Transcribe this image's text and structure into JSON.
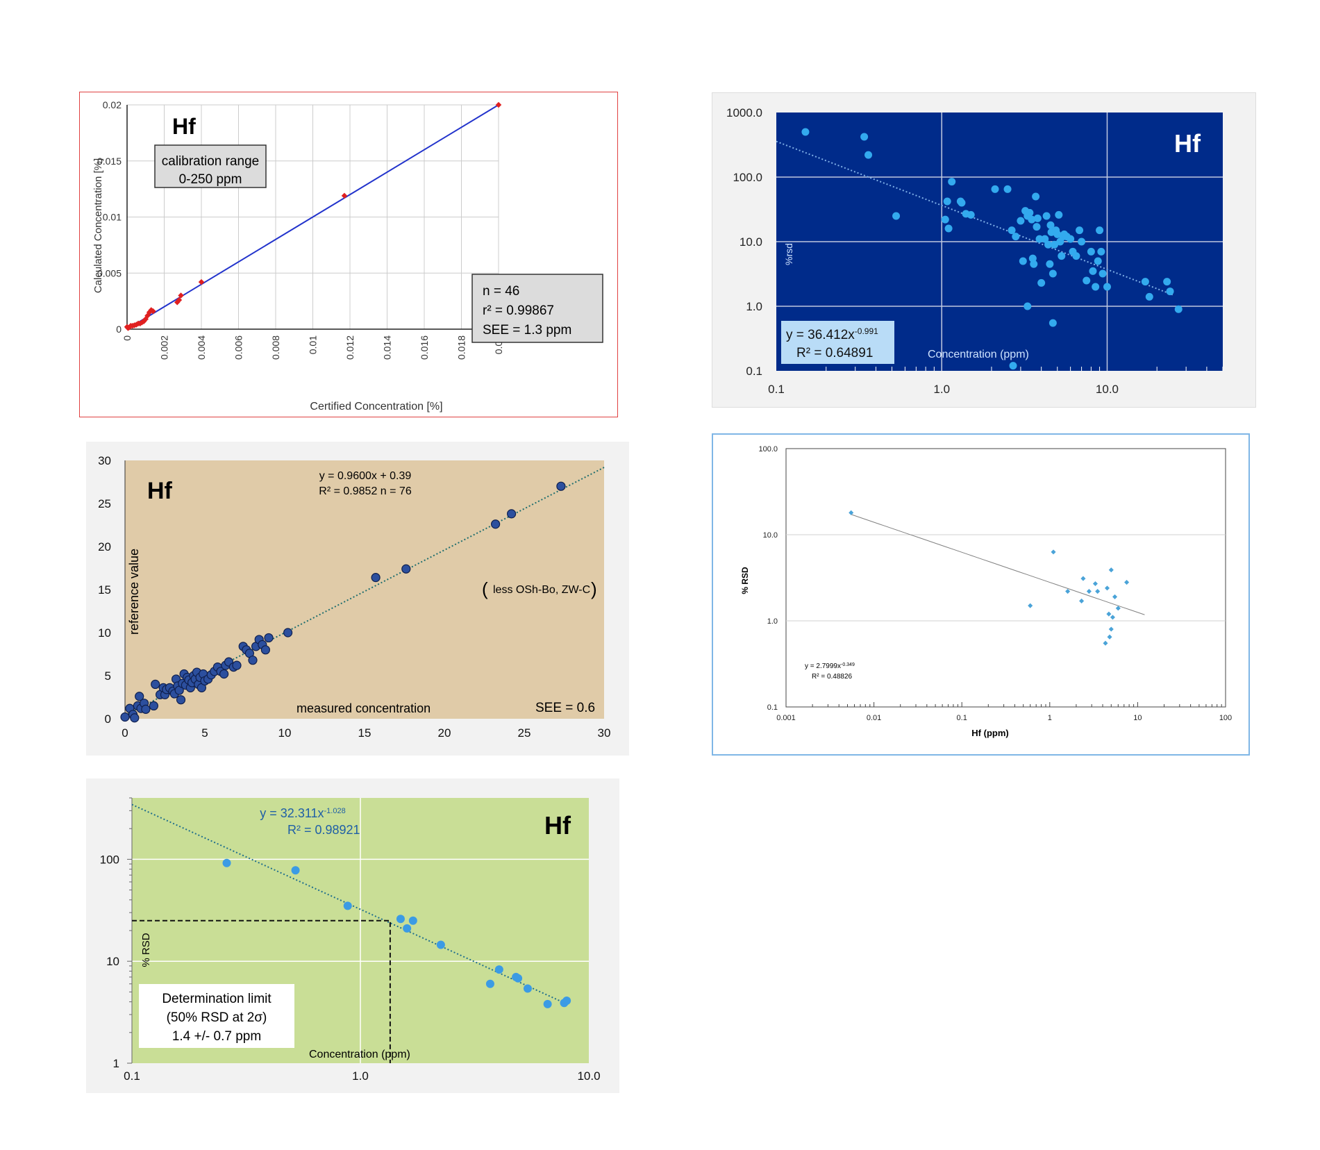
{
  "chart_data": [
    {
      "type": "scatter",
      "element": "Hf",
      "xlabel": "Certified Concentration [%]",
      "ylabel": "Calculated Concentration [%]",
      "xlim": [
        0,
        0.02
      ],
      "ylim": [
        0,
        0.02
      ],
      "x_ticks": [
        "0",
        "0.002",
        "0.004",
        "0.006",
        "0.008",
        "0.01",
        "0.012",
        "0.014",
        "0.016",
        "0.018",
        "0.02"
      ],
      "y_ticks": [
        "0",
        "0.005",
        "0.01",
        "0.015",
        "0.02"
      ],
      "grid": true,
      "box_title": "calibration range",
      "box_range": "0-250 ppm",
      "stats": [
        "n = 46",
        "r² = 0.99867",
        "SEE = 1.3 ppm"
      ],
      "fit_line": [
        [
          0,
          0
        ],
        [
          0.02,
          0.02
        ]
      ],
      "points": [
        [
          0,
          0.0002
        ],
        [
          5e-05,
          0.0001
        ],
        [
          0.0001,
          0.00015
        ],
        [
          0.00015,
          0.0002
        ],
        [
          0.0002,
          0.0003
        ],
        [
          0.0003,
          0.0003
        ],
        [
          0.0004,
          0.00035
        ],
        [
          0.0005,
          0.0004
        ],
        [
          0.0006,
          0.0005
        ],
        [
          0.0007,
          0.0005
        ],
        [
          0.0008,
          0.0006
        ],
        [
          0.0009,
          0.0007
        ],
        [
          0.001,
          0.0009
        ],
        [
          0.0011,
          0.0012
        ],
        [
          0.0012,
          0.0015
        ],
        [
          0.0013,
          0.0017
        ],
        [
          0.0014,
          0.0016
        ],
        [
          0.0027,
          0.0024
        ],
        [
          0.0028,
          0.0026
        ],
        [
          0.0029,
          0.003
        ],
        [
          0.004,
          0.0042
        ],
        [
          0.0117,
          0.0119
        ],
        [
          0.02,
          0.02
        ]
      ],
      "colors": {
        "points": "#e02020",
        "line": "#2233cc",
        "frame": "#e04040"
      }
    },
    {
      "type": "scatter",
      "element": "Hf",
      "ylabel": "%rsd",
      "xlabel": "Concentration (ppm)",
      "x_scale": "log",
      "y_scale": "log",
      "xlim": [
        0.1,
        50
      ],
      "ylim": [
        0.1,
        1000
      ],
      "x_ticks": [
        "0.1",
        "1.0",
        "10.0"
      ],
      "y_ticks": [
        "0.1",
        "1.0",
        "10.0",
        "100.0",
        "1000.0"
      ],
      "equation": "y = 36.412x",
      "equation_exp": "-0.991",
      "r2": "R² = 0.64891",
      "fit": {
        "a": 36.412,
        "b": -0.991
      },
      "fit_range": [
        0.1,
        25
      ],
      "points": [
        [
          0.15,
          500
        ],
        [
          0.34,
          420
        ],
        [
          0.36,
          220
        ],
        [
          0.53,
          25
        ],
        [
          1.05,
          22
        ],
        [
          1.08,
          42
        ],
        [
          1.1,
          16
        ],
        [
          1.15,
          85
        ],
        [
          1.3,
          42
        ],
        [
          1.32,
          40
        ],
        [
          1.4,
          27
        ],
        [
          1.5,
          26
        ],
        [
          2.1,
          65
        ],
        [
          2.5,
          65
        ],
        [
          2.65,
          15
        ],
        [
          2.8,
          12
        ],
        [
          3.0,
          21
        ],
        [
          3.1,
          5
        ],
        [
          3.2,
          30
        ],
        [
          3.3,
          25
        ],
        [
          3.4,
          28
        ],
        [
          3.5,
          22
        ],
        [
          3.55,
          5.5
        ],
        [
          3.6,
          4.5
        ],
        [
          3.7,
          50
        ],
        [
          3.75,
          17
        ],
        [
          3.8,
          23
        ],
        [
          3.9,
          11
        ],
        [
          4.0,
          2.3
        ],
        [
          4.2,
          11
        ],
        [
          4.3,
          25
        ],
        [
          4.4,
          9
        ],
        [
          4.5,
          4.5
        ],
        [
          4.55,
          18
        ],
        [
          4.6,
          14
        ],
        [
          4.7,
          3.2
        ],
        [
          4.8,
          9
        ],
        [
          4.9,
          15
        ],
        [
          5.0,
          13
        ],
        [
          5.1,
          26
        ],
        [
          5.2,
          10
        ],
        [
          5.3,
          6
        ],
        [
          5.4,
          12
        ],
        [
          5.5,
          13
        ],
        [
          5.7,
          12
        ],
        [
          6.0,
          11
        ],
        [
          6.2,
          7
        ],
        [
          6.5,
          6
        ],
        [
          6.8,
          15
        ],
        [
          7.0,
          10
        ],
        [
          7.5,
          2.5
        ],
        [
          8.0,
          7
        ],
        [
          8.2,
          3.5
        ],
        [
          8.5,
          2
        ],
        [
          8.8,
          5
        ],
        [
          9.0,
          15
        ],
        [
          9.2,
          7
        ],
        [
          9.4,
          3.2
        ],
        [
          10.0,
          2
        ],
        [
          17.0,
          2.4
        ],
        [
          18.0,
          1.4
        ],
        [
          23.0,
          2.4
        ],
        [
          24.0,
          1.7
        ],
        [
          27.0,
          0.9
        ],
        [
          3.3,
          1.0
        ],
        [
          4.7,
          0.55
        ],
        [
          2.7,
          0.12
        ]
      ],
      "colors": {
        "background": "#002b8a",
        "points": "#33aaee",
        "panel": "#f2f2f2",
        "label_box": "#b9dcf7"
      }
    },
    {
      "type": "scatter",
      "element": "Hf",
      "xlabel": "measured concentration",
      "ylabel": "reference value",
      "xlim": [
        0,
        30
      ],
      "ylim": [
        0,
        30
      ],
      "x_ticks": [
        "0",
        "5",
        "10",
        "15",
        "20",
        "25",
        "30"
      ],
      "y_ticks": [
        "0",
        "5",
        "10",
        "15",
        "20",
        "25",
        "30"
      ],
      "equation": "y = 0.9600x + 0.39",
      "r2_n": "R² = 0.9852   n = 76",
      "fit": {
        "slope": 0.96,
        "intercept": 0.39
      },
      "note": "less OSh-Bo, ZW-C",
      "see": "SEE = 0.6",
      "points": [
        [
          0,
          0.2
        ],
        [
          0.3,
          1.2
        ],
        [
          0.5,
          0.5
        ],
        [
          0.6,
          0.1
        ],
        [
          0.8,
          1.5
        ],
        [
          0.9,
          2.6
        ],
        [
          1.0,
          1.2
        ],
        [
          1.2,
          1.8
        ],
        [
          1.3,
          1.1
        ],
        [
          1.8,
          1.5
        ],
        [
          1.9,
          4.0
        ],
        [
          2.2,
          2.8
        ],
        [
          2.4,
          3.6
        ],
        [
          2.5,
          2.8
        ],
        [
          2.6,
          3.4
        ],
        [
          2.8,
          3.6
        ],
        [
          3.0,
          3.2
        ],
        [
          3.1,
          2.9
        ],
        [
          3.2,
          4.6
        ],
        [
          3.3,
          3.8
        ],
        [
          3.4,
          3.3
        ],
        [
          3.5,
          2.2
        ],
        [
          3.6,
          4.1
        ],
        [
          3.7,
          5.2
        ],
        [
          3.8,
          3.9
        ],
        [
          3.9,
          4.8
        ],
        [
          4.0,
          4.5
        ],
        [
          4.1,
          3.6
        ],
        [
          4.2,
          4.2
        ],
        [
          4.3,
          5.0
        ],
        [
          4.4,
          4.6
        ],
        [
          4.5,
          5.4
        ],
        [
          4.6,
          4.0
        ],
        [
          4.7,
          4.8
        ],
        [
          4.8,
          3.6
        ],
        [
          4.9,
          5.2
        ],
        [
          5.0,
          4.4
        ],
        [
          5.2,
          4.6
        ],
        [
          5.4,
          5.1
        ],
        [
          5.6,
          5.5
        ],
        [
          5.8,
          6.0
        ],
        [
          6.0,
          5.5
        ],
        [
          6.2,
          5.2
        ],
        [
          6.3,
          6.2
        ],
        [
          6.5,
          6.6
        ],
        [
          6.8,
          6.0
        ],
        [
          7.0,
          6.2
        ],
        [
          7.4,
          8.4
        ],
        [
          7.6,
          8.0
        ],
        [
          7.8,
          7.6
        ],
        [
          8.0,
          6.8
        ],
        [
          8.2,
          8.4
        ],
        [
          8.4,
          9.2
        ],
        [
          8.6,
          8.6
        ],
        [
          8.8,
          8.0
        ],
        [
          9.0,
          9.4
        ],
        [
          10.2,
          10.0
        ],
        [
          15.7,
          16.4
        ],
        [
          17.6,
          17.4
        ],
        [
          23.2,
          22.6
        ],
        [
          24.2,
          23.8
        ],
        [
          27.3,
          27.0
        ]
      ],
      "colors": {
        "background": "#e0cba8",
        "points": "#1f3d8f",
        "fit": "#1f6e6e",
        "panel": "#f2f2f2"
      }
    },
    {
      "type": "scatter",
      "element": "Hf",
      "xlabel": "Hf (ppm)",
      "ylabel": "% RSD",
      "x_scale": "log",
      "y_scale": "log",
      "xlim": [
        0.001,
        100
      ],
      "ylim": [
        0.1,
        100
      ],
      "x_ticks": [
        "0.001",
        "0.01",
        "0.1",
        "1",
        "10",
        "100"
      ],
      "y_ticks": [
        "0.1",
        "1.0",
        "10.0",
        "100.0"
      ],
      "equation": "y = 2.7999x",
      "equation_exp": "-0.349",
      "r2": "R² = 0.48826",
      "fit": {
        "a": 2.7999,
        "b": -0.349
      },
      "fit_range": [
        0.0055,
        12
      ],
      "points": [
        [
          0.0055,
          18
        ],
        [
          0.6,
          1.5
        ],
        [
          1.1,
          6.3
        ],
        [
          1.6,
          2.2
        ],
        [
          2.3,
          1.7
        ],
        [
          2.4,
          3.1
        ],
        [
          2.8,
          2.2
        ],
        [
          3.3,
          2.7
        ],
        [
          3.5,
          2.2
        ],
        [
          4.3,
          0.55
        ],
        [
          4.5,
          2.4
        ],
        [
          4.7,
          1.2
        ],
        [
          4.8,
          0.65
        ],
        [
          5.0,
          0.8
        ],
        [
          5.2,
          1.1
        ],
        [
          5.0,
          3.9
        ],
        [
          5.5,
          1.9
        ],
        [
          6.0,
          1.4
        ],
        [
          7.5,
          2.8
        ]
      ],
      "colors": {
        "points": "#4aa3d8",
        "frame": "#7fb6e6",
        "line": "#808080"
      }
    },
    {
      "type": "scatter",
      "element": "Hf",
      "xlabel": "Concentration  (ppm)",
      "ylabel": "% RSD",
      "x_scale": "log",
      "y_scale": "log",
      "xlim": [
        0.1,
        10
      ],
      "ylim": [
        1,
        400
      ],
      "x_ticks": [
        "0.1",
        "1.0",
        "10.0"
      ],
      "y_ticks": [
        "1",
        "10",
        "100"
      ],
      "equation": "y = 32.311x",
      "equation_exp": "-1.028",
      "r2": "R² = 0.98921",
      "fit": {
        "a": 32.311,
        "b": -1.028
      },
      "fit_range": [
        0.1,
        8
      ],
      "determination_limit": {
        "x": 1.35,
        "y": 25
      },
      "box_lines": [
        "Determination limit",
        "(50% RSD at 2σ)",
        "1.4 +/- 0.7 ppm"
      ],
      "points": [
        [
          0.26,
          92
        ],
        [
          0.52,
          78
        ],
        [
          0.88,
          35
        ],
        [
          1.5,
          26
        ],
        [
          1.6,
          21
        ],
        [
          1.7,
          25
        ],
        [
          2.25,
          14.5
        ],
        [
          3.7,
          6.0
        ],
        [
          4.05,
          8.3
        ],
        [
          4.8,
          7.0
        ],
        [
          4.9,
          6.8
        ],
        [
          5.4,
          5.4
        ],
        [
          6.6,
          3.8
        ],
        [
          7.8,
          3.9
        ],
        [
          8.0,
          4.1
        ]
      ],
      "colors": {
        "background": "#c9de96",
        "points": "#3b9be4",
        "fit": "#1f6e8c",
        "panel": "#f2f2f2",
        "text": "#1f5fa6"
      }
    }
  ]
}
